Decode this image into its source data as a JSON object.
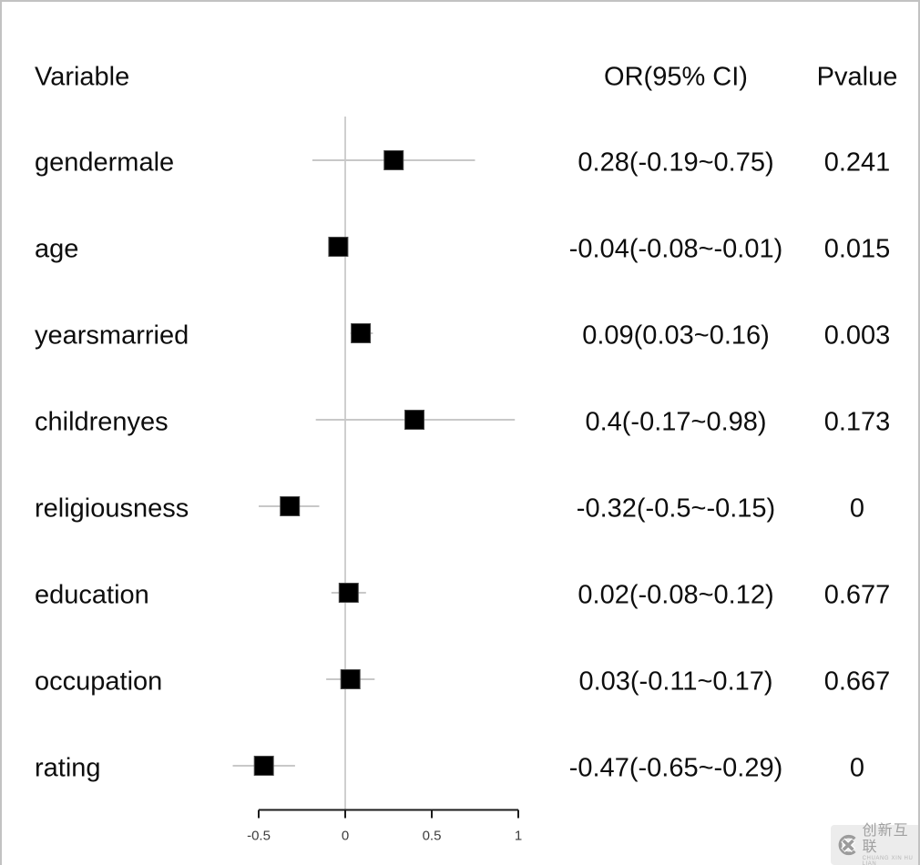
{
  "headers": {
    "variable": "Variable",
    "or_ci": "OR(95% CI)",
    "pvalue": "Pvalue"
  },
  "chart_data": {
    "type": "forest",
    "title": "",
    "columns": [
      "Variable",
      "OR(95% CI)",
      "Pvalue"
    ],
    "rows": [
      {
        "variable": "gendermale",
        "or": 0.28,
        "ci_low": -0.19,
        "ci_high": 0.75,
        "or_ci_label": "0.28(-0.19~0.75)",
        "pvalue": "0.241"
      },
      {
        "variable": "age",
        "or": -0.04,
        "ci_low": -0.08,
        "ci_high": -0.01,
        "or_ci_label": "-0.04(-0.08~-0.01)",
        "pvalue": "0.015"
      },
      {
        "variable": "yearsmarried",
        "or": 0.09,
        "ci_low": 0.03,
        "ci_high": 0.16,
        "or_ci_label": "0.09(0.03~0.16)",
        "pvalue": "0.003"
      },
      {
        "variable": "childrenyes",
        "or": 0.4,
        "ci_low": -0.17,
        "ci_high": 0.98,
        "or_ci_label": "0.4(-0.17~0.98)",
        "pvalue": "0.173"
      },
      {
        "variable": "religiousness",
        "or": -0.32,
        "ci_low": -0.5,
        "ci_high": -0.15,
        "or_ci_label": "-0.32(-0.5~-0.15)",
        "pvalue": "0"
      },
      {
        "variable": "education",
        "or": 0.02,
        "ci_low": -0.08,
        "ci_high": 0.12,
        "or_ci_label": "0.02(-0.08~0.12)",
        "pvalue": "0.677"
      },
      {
        "variable": "occupation",
        "or": 0.03,
        "ci_low": -0.11,
        "ci_high": 0.17,
        "or_ci_label": "0.03(-0.11~0.17)",
        "pvalue": "0.667"
      },
      {
        "variable": "rating",
        "or": -0.47,
        "ci_low": -0.65,
        "ci_high": -0.29,
        "or_ci_label": "-0.47(-0.65~-0.29)",
        "pvalue": "0"
      }
    ],
    "x_axis": {
      "range": [
        -0.5,
        1
      ],
      "ticks": [
        -0.5,
        0,
        0.5,
        1
      ],
      "tick_labels": [
        "-0.5",
        "0",
        "0.5",
        "1"
      ],
      "zero_line": 0
    },
    "legend": null,
    "grid": false,
    "colors": {
      "marker": "#000000",
      "marker_edge": "#4a4a4a",
      "ci_line": "#c8c8c8",
      "zero_line": "#cfcfcf",
      "axis": "#1c1c1c",
      "text": "#0d0d0d",
      "frame_border": "#c2c2c2"
    }
  },
  "watermark": {
    "cn_text": "创新互联",
    "en_text": "CHUANG XIN HU LIAN"
  }
}
